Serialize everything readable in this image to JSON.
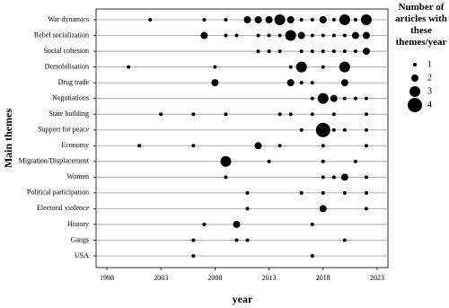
{
  "chart_data": {
    "type": "scatter",
    "x_label": "year",
    "y_label": "Main themes",
    "xlim": [
      1997,
      2024
    ],
    "xticks": [
      1998,
      2003,
      2008,
      2013,
      2018,
      2023
    ],
    "color": "#000000",
    "grid": true,
    "size_legend": {
      "title": "Number of articles with these themes/year",
      "values": [
        1,
        2,
        3,
        4
      ]
    },
    "series": [
      {
        "name": "War dynamics",
        "x": [
          2002,
          2007,
          2009,
          2011,
          2012,
          2013,
          2014,
          2015,
          2016,
          2017,
          2018,
          2019,
          2020,
          2021,
          2022
        ],
        "sizes": [
          1,
          1,
          1,
          2,
          2,
          2,
          3,
          2,
          1,
          1,
          2,
          1,
          3,
          1,
          3
        ]
      },
      {
        "name": "Rebel socialization",
        "x": [
          2007,
          2009,
          2010,
          2012,
          2013,
          2014,
          2015,
          2016,
          2017,
          2018,
          2019,
          2020,
          2021,
          2022
        ],
        "sizes": [
          2,
          1,
          1,
          1,
          1,
          1,
          3,
          2,
          1,
          1,
          1,
          1,
          2,
          2
        ]
      },
      {
        "name": "Social cohesion",
        "x": [
          2012,
          2013,
          2014,
          2016,
          2017,
          2018,
          2019,
          2020,
          2021,
          2022
        ],
        "sizes": [
          1,
          1,
          1,
          1,
          1,
          1,
          1,
          1,
          1,
          2
        ]
      },
      {
        "name": "Demobilisation",
        "x": [
          2000,
          2008,
          2015,
          2016,
          2018,
          2020
        ],
        "sizes": [
          1,
          1,
          1,
          3,
          1,
          3
        ]
      },
      {
        "name": "Drug trade",
        "x": [
          2008,
          2015,
          2016,
          2017,
          2020
        ],
        "sizes": [
          2,
          2,
          1,
          1,
          2
        ]
      },
      {
        "name": "Negotiations",
        "x": [
          2017,
          2018,
          2019,
          2020,
          2021,
          2022
        ],
        "sizes": [
          1,
          3,
          2,
          1,
          1,
          1
        ]
      },
      {
        "name": "State building",
        "x": [
          2003,
          2006,
          2009,
          2014,
          2015,
          2017,
          2019,
          2022
        ],
        "sizes": [
          1,
          1,
          1,
          1,
          1,
          1,
          1,
          1
        ]
      },
      {
        "name": "Support for peace",
        "x": [
          2016,
          2018,
          2019,
          2020,
          2022
        ],
        "sizes": [
          1,
          4,
          1,
          1,
          1
        ]
      },
      {
        "name": "Economy",
        "x": [
          2001,
          2006,
          2012,
          2014,
          2018,
          2022
        ],
        "sizes": [
          1,
          1,
          2,
          1,
          1,
          1
        ]
      },
      {
        "name": "Migration/Displacement",
        "x": [
          2009,
          2013,
          2018,
          2021
        ],
        "sizes": [
          3,
          1,
          1,
          1
        ]
      },
      {
        "name": "Women",
        "x": [
          2009,
          2018,
          2019,
          2020,
          2022
        ],
        "sizes": [
          1,
          1,
          1,
          2,
          1
        ]
      },
      {
        "name": "Political participation",
        "x": [
          2011,
          2016,
          2018,
          2020,
          2022
        ],
        "sizes": [
          1,
          1,
          1,
          1,
          1
        ]
      },
      {
        "name": "Electoral violence",
        "x": [
          2011,
          2018,
          2022
        ],
        "sizes": [
          1,
          2,
          1
        ]
      },
      {
        "name": "History",
        "x": [
          2007,
          2010,
          2017
        ],
        "sizes": [
          1,
          2,
          1
        ]
      },
      {
        "name": "Gangs",
        "x": [
          2006,
          2010,
          2011,
          2020
        ],
        "sizes": [
          1,
          1,
          1,
          1
        ]
      },
      {
        "name": "USA",
        "x": [
          2006,
          2017
        ],
        "sizes": [
          1,
          1
        ]
      }
    ]
  }
}
